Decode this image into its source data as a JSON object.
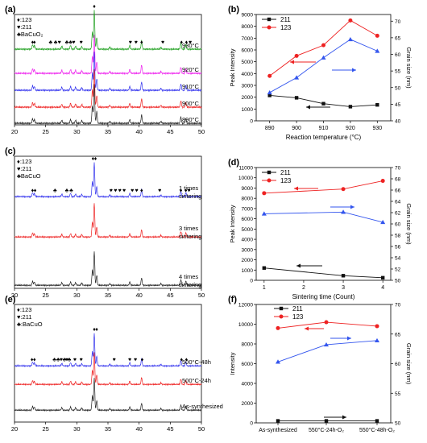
{
  "chart_data": [
    {
      "panel": "(a)",
      "type": "line",
      "xlabel": "",
      "ylabel": "",
      "xlim": [
        20,
        50
      ],
      "xticks": [
        "20",
        "25",
        "30",
        "35",
        "40",
        "45",
        "50"
      ],
      "legend": [
        {
          "symbol": "♦",
          "label": ":123"
        },
        {
          "symbol": "♥",
          "label": ":211"
        },
        {
          "symbol": "♣",
          "label": "BaCuO₂"
        }
      ],
      "series": [
        {
          "name": "930°C",
          "color": "#20a020"
        },
        {
          "name": "920°C",
          "color": "#ee22ee"
        },
        {
          "name": "910°C",
          "color": "#3333ee"
        },
        {
          "name": "900°C",
          "color": "#ee2222"
        },
        {
          "name": "890°C",
          "color": "#222222"
        }
      ],
      "markers": {
        "diamond": [
          22.9,
          23.2,
          32.8,
          40.4,
          46.8,
          47.6
        ],
        "heart": [
          27.2,
          29.5,
          30.7,
          38.6,
          39.5,
          43.8,
          48.2
        ],
        "club": [
          25.8,
          26.6,
          28.4,
          29.0
        ]
      }
    },
    {
      "panel": "(b)",
      "type": "line",
      "xlabel": "Reaction temperature  (°C)",
      "ylabel": "Peak Intensity",
      "y2label": "Grain size (nm)",
      "xlim": [
        885,
        935
      ],
      "ylim": [
        0,
        9000
      ],
      "y2lim": [
        40,
        72
      ],
      "x": [
        890,
        900,
        910,
        920,
        930
      ],
      "series": [
        {
          "name": "211",
          "color": "#111111",
          "axis": "left",
          "values": [
            2150,
            1950,
            1450,
            1200,
            1350
          ]
        },
        {
          "name": "123",
          "color": "#ee2222",
          "axis": "left",
          "values": [
            3800,
            5500,
            6400,
            8500,
            7200
          ]
        },
        {
          "name": "",
          "color": "#3355ee",
          "axis": "right",
          "values": [
            48.5,
            53,
            59,
            64.5,
            61
          ]
        }
      ],
      "legend_loc": "top-left"
    },
    {
      "panel": "(c)",
      "type": "line",
      "xlabel": "",
      "ylabel": "",
      "xlim": [
        20,
        50
      ],
      "xticks": [
        "20",
        "25",
        "30",
        "35",
        "40",
        "45",
        "50"
      ],
      "legend": [
        {
          "symbol": "♦",
          "label": ":123"
        },
        {
          "symbol": "♥",
          "label": ":211"
        },
        {
          "symbol": "♣",
          "label": "BaCuO"
        }
      ],
      "series": [
        {
          "name": "1 times sintering",
          "color": "#3333ee"
        },
        {
          "name": "3 times sintering",
          "color": "#ee2222"
        },
        {
          "name": "4 times sintering",
          "color": "#222222"
        }
      ],
      "markers": {
        "diamond": [
          22.9,
          23.3,
          32.6,
          33.0,
          40.4,
          46.7,
          47.5
        ],
        "heart": [
          35.5,
          36.2,
          36.9,
          37.6,
          38.9,
          39.6,
          43.3,
          48.0
        ],
        "club": [
          26.5,
          28.4,
          29.1
        ]
      }
    },
    {
      "panel": "(d)",
      "type": "line",
      "xlabel": "Sintering time (Count)",
      "ylabel": "Peak Intensity",
      "y2label": "Grain size (nm)",
      "xlim": [
        0.8,
        4.2
      ],
      "ylim": [
        0,
        11000
      ],
      "y2lim": [
        50,
        70
      ],
      "x": [
        1,
        3,
        4
      ],
      "series": [
        {
          "name": "211",
          "color": "#111111",
          "axis": "left",
          "values": [
            1200,
            450,
            250
          ]
        },
        {
          "name": "123",
          "color": "#ee2222",
          "axis": "left",
          "values": [
            8500,
            8900,
            9700
          ]
        },
        {
          "name": "",
          "color": "#3355ee",
          "axis": "right",
          "values": [
            61.8,
            62.1,
            60.3
          ]
        }
      ],
      "legend_loc": "top-left"
    },
    {
      "panel": "(e)",
      "type": "line",
      "xlabel": "",
      "ylabel": "",
      "xlim": [
        20,
        50
      ],
      "xticks": [
        "20",
        "25",
        "30",
        "35",
        "40",
        "45",
        "50"
      ],
      "legend": [
        {
          "symbol": "♦",
          "label": ":123"
        },
        {
          "symbol": "♥",
          "label": ":211"
        },
        {
          "symbol": "♣",
          "label": ":BaCuO"
        }
      ],
      "series": [
        {
          "name": "500°C-48h",
          "color": "#3333ee"
        },
        {
          "name": "500°C-24h",
          "color": "#ee2222"
        },
        {
          "name": "As-synthesized",
          "color": "#222222"
        }
      ],
      "markers": {
        "diamond": [
          22.8,
          23.2,
          32.8,
          33.2,
          40.5,
          46.8,
          47.6
        ],
        "heart": [
          27.5,
          28.4,
          29.7,
          30.7,
          36.0,
          38.5,
          39.4
        ],
        "club": [
          26.4,
          27.0,
          28.0,
          28.8
        ]
      }
    },
    {
      "panel": "(f)",
      "type": "line",
      "xlabel": "",
      "ylabel": "Intensity",
      "y2label": "Grain size (nm)",
      "ylim": [
        0,
        12000
      ],
      "y2lim": [
        50,
        70
      ],
      "categories": [
        "As-synthesized",
        "550°C-24h-O₂",
        "550°C-48h-O₂"
      ],
      "series": [
        {
          "name": "211",
          "color": "#111111",
          "axis": "left",
          "values": [
            200,
            200,
            200
          ]
        },
        {
          "name": "123",
          "color": "#ee2222",
          "axis": "left",
          "values": [
            9600,
            10200,
            9800
          ]
        },
        {
          "name": "",
          "color": "#3355ee",
          "axis": "right",
          "values": [
            60.3,
            63.2,
            63.9
          ]
        }
      ],
      "legend_loc": "top-center"
    }
  ],
  "colors": {
    "axis": "#000000",
    "arrow": "#000000"
  }
}
